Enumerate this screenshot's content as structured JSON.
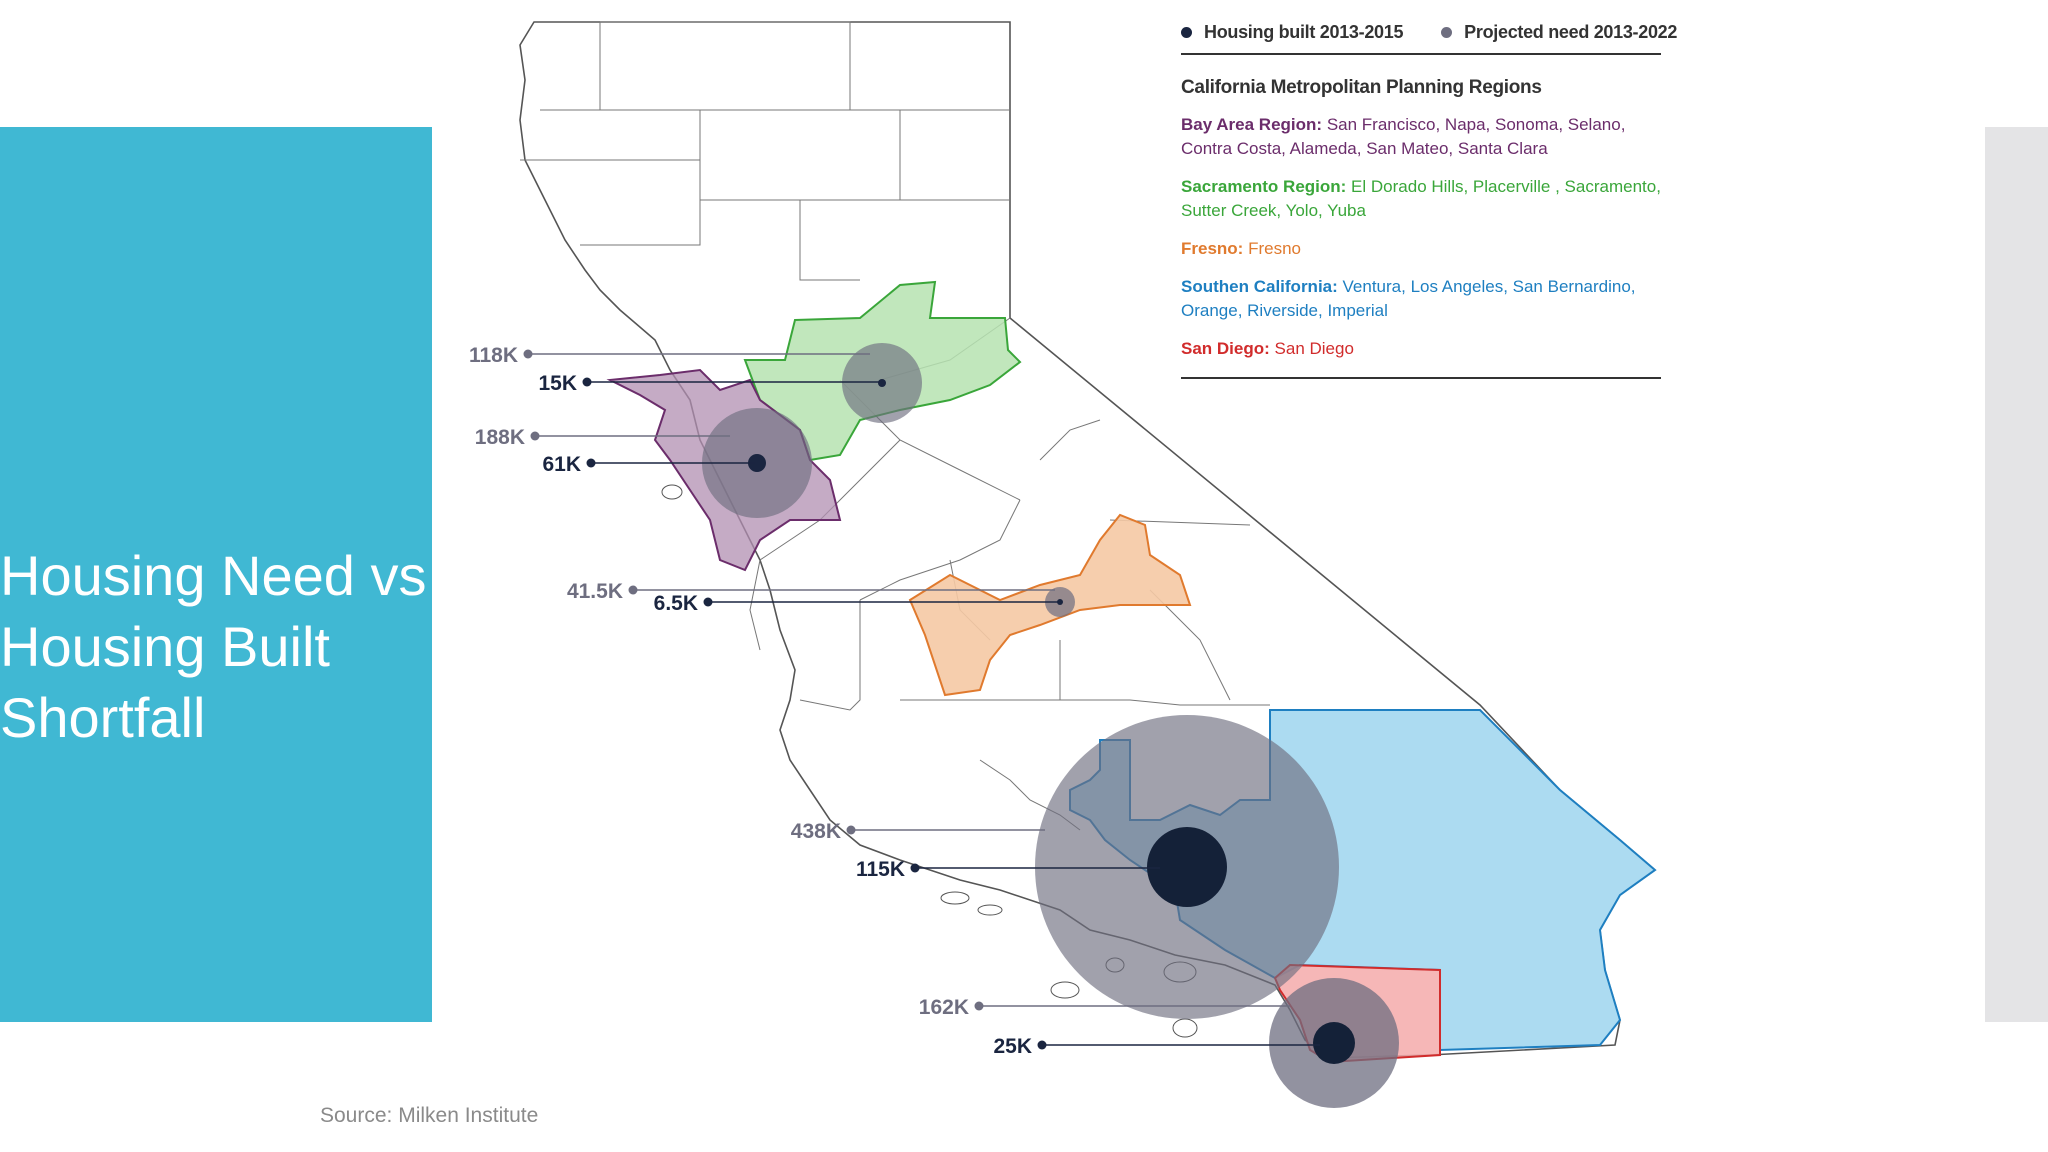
{
  "title": {
    "lines": [
      "Housing Need vs",
      "Housing Built",
      "Shortfall"
    ]
  },
  "source": "Source: Milken Institute",
  "colors": {
    "panel": "#40b8d3",
    "built_dot": "#1a2540",
    "projected_dot": "#6e6e80",
    "bay_area": "#6b2d6b",
    "sacramento": "#3aa63a",
    "fresno": "#e07a2e",
    "southern_california": "#1e7fc1",
    "san_diego": "#d12c2c"
  },
  "legend": {
    "built_label": "Housing built 2013-2015",
    "projected_label": "Projected need 2013-2022",
    "heading": "California Metropolitan Planning Regions",
    "regions": [
      {
        "name": "Bay Area Region:",
        "members": "San Francisco, Napa, Sonoma, Selano, Contra Costa, Alameda, San Mateo, Santa Clara",
        "color": "#6b2d6b"
      },
      {
        "name": "Sacramento Region:",
        "members": "El Dorado Hills, Placerville , Sacramento, Sutter Creek, Yolo, Yuba",
        "color": "#3aa63a"
      },
      {
        "name": "Fresno:",
        "members": "Fresno",
        "color": "#e07a2e"
      },
      {
        "name": "Southen California:",
        "members": "Ventura, Los Angeles, San Bernardino, Orange, Riverside, Imperial",
        "color": "#1e7fc1"
      },
      {
        "name": "San Diego:",
        "members": "San Diego",
        "color": "#d12c2c"
      }
    ]
  },
  "markers": {
    "sacramento": {
      "projected": "118K",
      "built": "15K"
    },
    "bay_area": {
      "projected": "188K",
      "built": "61K"
    },
    "fresno": {
      "projected": "41.5K",
      "built": "6.5K"
    },
    "southern_california": {
      "projected": "438K",
      "built": "115K"
    },
    "san_diego": {
      "projected": "162K",
      "built": "25K"
    }
  }
}
